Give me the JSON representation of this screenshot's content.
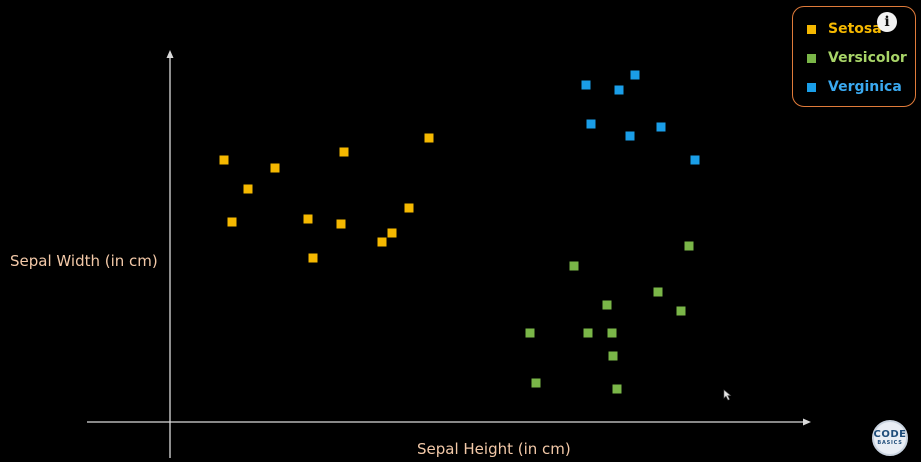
{
  "chart_data": {
    "type": "scatter",
    "title": "",
    "xlabel": "Sepal Height (in cm)",
    "ylabel": "Sepal Width (in cm)",
    "xlim": [
      0,
      640
    ],
    "ylim": [
      0,
      375
    ],
    "grid": false,
    "legend_position": "top-right",
    "series": [
      {
        "name": "Setosa",
        "color": "#f5b800",
        "label_color": "#f5b800",
        "x": [
          54,
          62,
          78,
          105,
          138,
          143,
          171,
          174,
          212,
          222,
          239,
          259
        ],
        "y": [
          262,
          200,
          233,
          254,
          203,
          164,
          198,
          270,
          180,
          189,
          214,
          284
        ]
      },
      {
        "name": "Versicolor",
        "color": "#7ab648",
        "label_color": "#a8d468",
        "x": [
          360,
          366,
          404,
          418,
          437,
          442,
          443,
          447,
          488,
          511,
          519
        ],
        "y": [
          89,
          39,
          156,
          89,
          117,
          89,
          66,
          33,
          130,
          111,
          176
        ]
      },
      {
        "name": "Verginica",
        "color": "#1a9ee8",
        "label_color": "#3aa9f0",
        "x": [
          416,
          421,
          449,
          460,
          465,
          491,
          525
        ],
        "y": [
          337,
          298,
          332,
          286,
          347,
          295,
          262
        ]
      }
    ]
  },
  "info_icon": "info-icon",
  "logo": {
    "line1": "CODE",
    "line2": "BASICS"
  }
}
